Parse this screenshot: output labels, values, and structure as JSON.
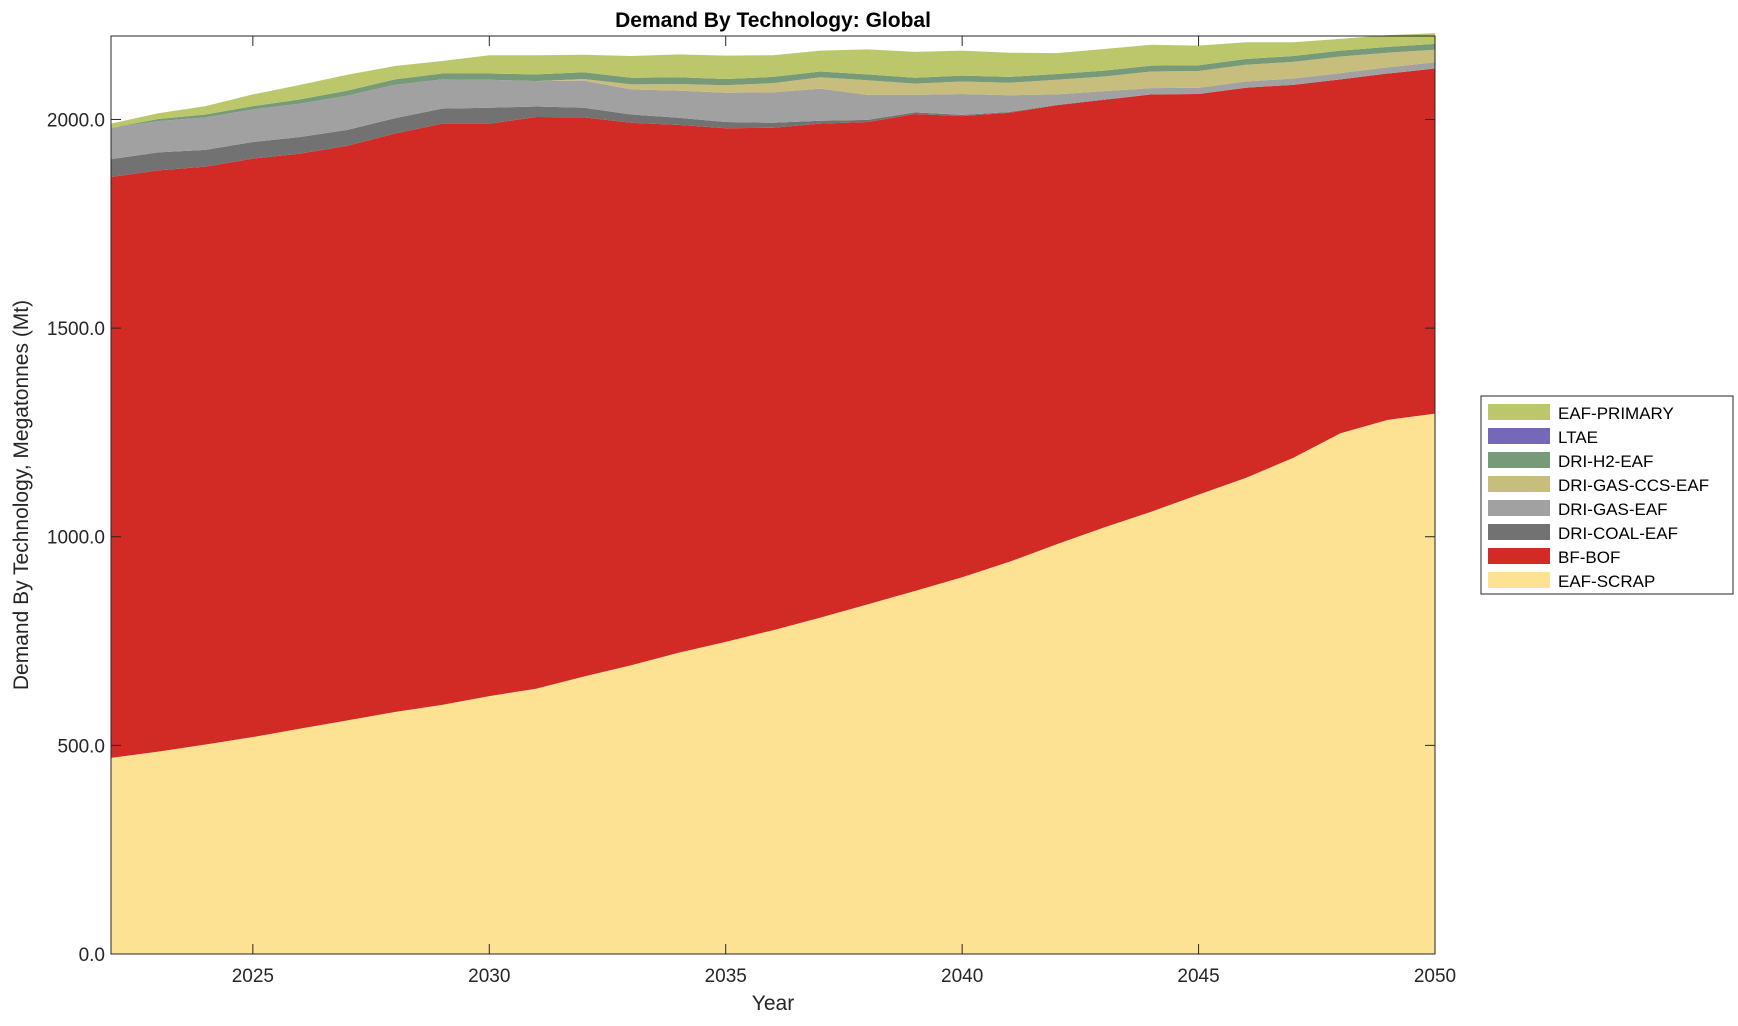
{
  "chart_data": {
    "type": "area",
    "title": "Demand By Technology: Global",
    "xlabel": "Year",
    "ylabel": "Demand By Technology, Megatonnes (Mt)",
    "xlim": [
      2022,
      2050
    ],
    "ylim": [
      0,
      2200
    ],
    "xticks": [
      2025,
      2030,
      2035,
      2040,
      2045,
      2050
    ],
    "yticks": [
      0,
      500,
      1000,
      1500,
      2000
    ],
    "ytick_labels": [
      "0.0",
      "500.0",
      "1000.0",
      "1500.0",
      "2000.0"
    ],
    "grid": false,
    "legend_position": "right",
    "legend_order": [
      "EAF-PRIMARY",
      "LTAE",
      "DRI-H2-EAF",
      "DRI-GAS-CCS-EAF",
      "DRI-GAS-EAF",
      "DRI-COAL-EAF",
      "BF-BOF",
      "EAF-SCRAP"
    ],
    "x": [
      2022,
      2023,
      2024,
      2025,
      2026,
      2027,
      2028,
      2029,
      2030,
      2031,
      2032,
      2033,
      2034,
      2035,
      2036,
      2037,
      2038,
      2039,
      2040,
      2041,
      2042,
      2043,
      2044,
      2045,
      2046,
      2047,
      2048,
      2049,
      2050
    ],
    "series": [
      {
        "name": "EAF-SCRAP",
        "color": "#fde293",
        "values": [
          470,
          485,
          502,
          520,
          540,
          560,
          580,
          597,
          618,
          636,
          665,
          692,
          722,
          748,
          776,
          806,
          838,
          870,
          903,
          940,
          982,
          1022,
          1060,
          1101,
          1141,
          1189,
          1248,
          1280,
          1295
        ]
      },
      {
        "name": "BF-BOF",
        "color": "#d22a25",
        "values": [
          1392,
          1393,
          1385,
          1386,
          1378,
          1377,
          1386,
          1393,
          1372,
          1370,
          1340,
          1300,
          1265,
          1231,
          1204,
          1184,
          1156,
          1143,
          1105,
          1076,
          1052,
          1025,
          1000,
          960,
          935,
          894,
          848,
          830,
          827
        ]
      },
      {
        "name": "DRI-COAL-EAF",
        "color": "#727272",
        "values": [
          43,
          43,
          40,
          40,
          40,
          38,
          37,
          36,
          38,
          25,
          23,
          20,
          17,
          15,
          12,
          7,
          5,
          4,
          3,
          2,
          1,
          1,
          0,
          0,
          0,
          0,
          0,
          0,
          0
        ]
      },
      {
        "name": "DRI-GAS-EAF",
        "color": "#a1a1a1",
        "values": [
          75,
          75,
          78,
          78,
          80,
          82,
          80,
          70,
          67,
          61,
          65,
          60,
          65,
          70,
          73,
          77,
          60,
          42,
          50,
          40,
          25,
          20,
          15,
          15,
          15,
          15,
          15,
          15,
          15
        ]
      },
      {
        "name": "DRI-GAS-CCS-EAF",
        "color": "#c7bd7c",
        "values": [
          0,
          0,
          0,
          0,
          0,
          0,
          0,
          0,
          0,
          0,
          4,
          12,
          16,
          18,
          22,
          27,
          35,
          27,
          30,
          30,
          35,
          35,
          40,
          40,
          40,
          40,
          40,
          35,
          30
        ]
      },
      {
        "name": "DRI-H2-EAF",
        "color": "#779a78",
        "values": [
          0,
          5,
          7,
          8,
          10,
          12,
          13,
          14,
          15,
          16,
          16,
          16,
          16,
          15,
          15,
          14,
          14,
          14,
          14,
          14,
          14,
          14,
          14,
          14,
          14,
          14,
          14,
          14,
          14
        ]
      },
      {
        "name": "LTAE",
        "color": "#7668b8",
        "values": [
          0,
          0,
          0,
          0,
          0,
          0,
          0,
          0,
          0,
          0,
          0,
          0,
          0,
          0,
          0,
          0,
          0,
          0,
          0,
          0,
          0,
          0,
          0,
          0,
          0,
          0,
          0,
          0,
          0
        ]
      },
      {
        "name": "EAF-PRIMARY",
        "color": "#bcc76c",
        "values": [
          10,
          14,
          20,
          28,
          35,
          38,
          32,
          30,
          44,
          46,
          42,
          52,
          55,
          56,
          52,
          50,
          60,
          62,
          60,
          58,
          50,
          52,
          50,
          47,
          40,
          33,
          28,
          28,
          26
        ]
      }
    ]
  }
}
